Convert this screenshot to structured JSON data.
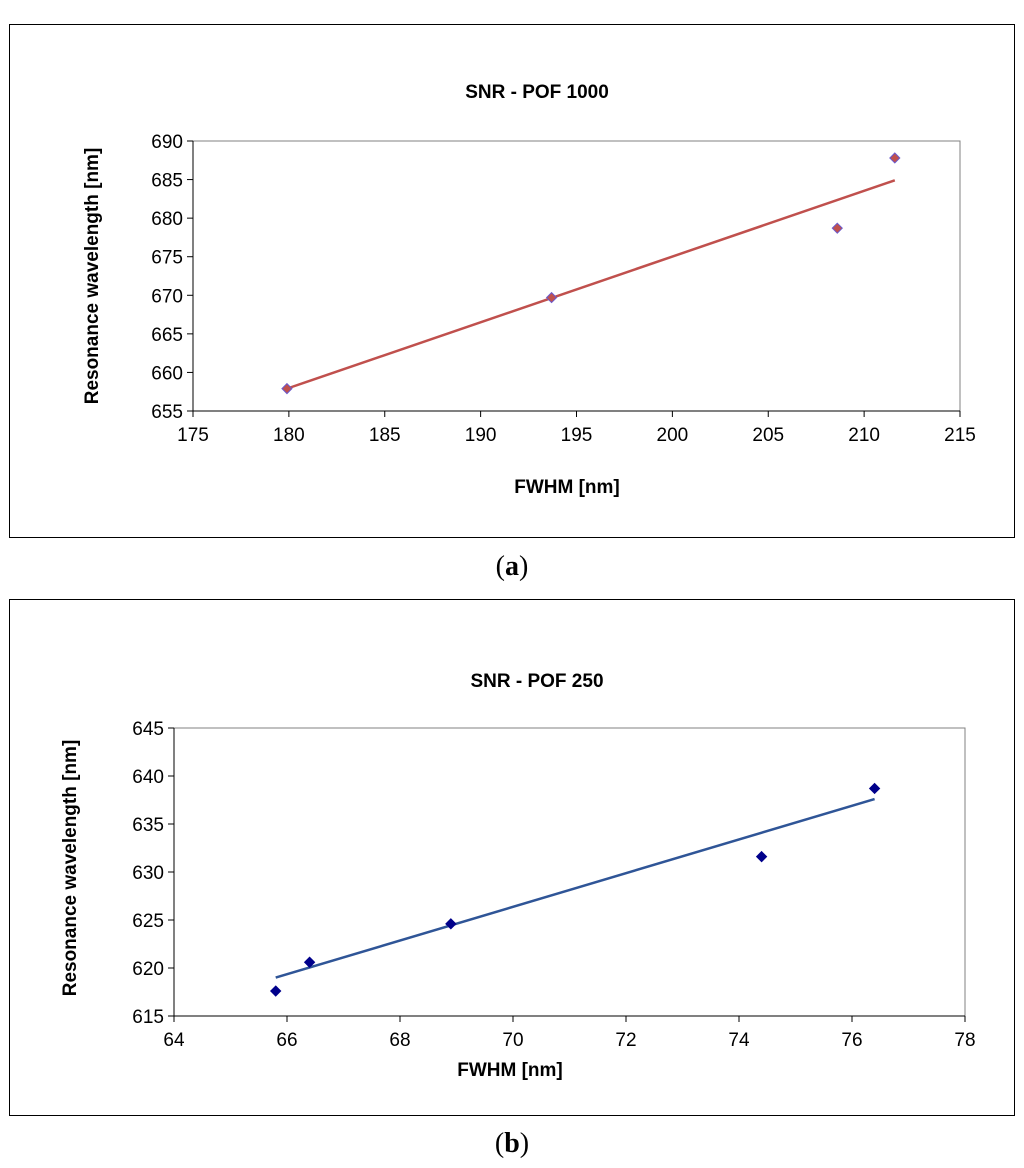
{
  "chart_data": [
    {
      "type": "scatter",
      "panel": "a",
      "title": "SNR  - POF 1000",
      "xlabel": "FWHM [nm]",
      "ylabel": "Resonance wavelength [nm]",
      "xlim": [
        175,
        215
      ],
      "ylim": [
        655,
        690
      ],
      "xticks": [
        175,
        180,
        185,
        190,
        195,
        200,
        205,
        210,
        215
      ],
      "yticks": [
        655,
        660,
        665,
        670,
        675,
        680,
        685,
        690
      ],
      "marker_color": "#c0504d",
      "marker_edge": "#6a5acd",
      "line_color": "#c0504d",
      "x": [
        179.9,
        193.7,
        208.6,
        211.6
      ],
      "y": [
        657.9,
        669.7,
        678.7,
        687.8
      ],
      "trendline": {
        "x": [
          179.9,
          211.6
        ],
        "y": [
          657.9,
          684.9
        ]
      }
    },
    {
      "type": "scatter",
      "panel": "b",
      "title": "SNR  - POF 250",
      "xlabel": "FWHM [nm]",
      "ylabel": "Resonance wavelength [nm]",
      "xlim": [
        64,
        78
      ],
      "ylim": [
        615,
        645
      ],
      "xticks": [
        64,
        66,
        68,
        70,
        72,
        74,
        76,
        78
      ],
      "yticks": [
        615,
        620,
        625,
        630,
        635,
        640,
        645
      ],
      "marker_color": "#00008b",
      "marker_edge": "#00008b",
      "line_color": "#2f5597",
      "x": [
        65.8,
        66.4,
        68.9,
        74.4,
        76.4
      ],
      "y": [
        617.6,
        620.6,
        624.6,
        631.6,
        638.7
      ],
      "trendline": {
        "x": [
          65.8,
          76.4
        ],
        "y": [
          619.0,
          637.6
        ]
      }
    }
  ],
  "captions": {
    "a": "a",
    "b": "b"
  }
}
